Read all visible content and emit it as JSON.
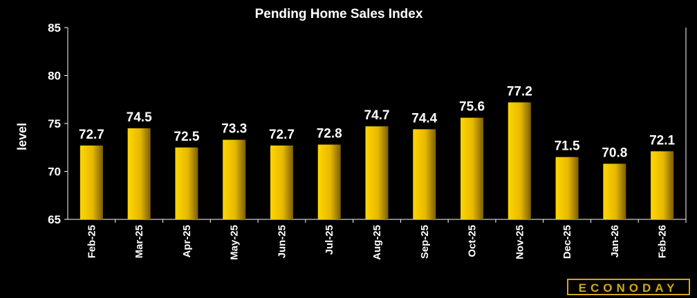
{
  "chart_data": {
    "type": "bar",
    "title": "Pending Home Sales Index",
    "ylabel": "level",
    "xlabel": "",
    "categories": [
      "Feb-25",
      "Mar-25",
      "Apr-25",
      "May-25",
      "Jun-25",
      "Jul-25",
      "Aug-25",
      "Sep-25",
      "Oct-25",
      "Nov-25",
      "Dec-25",
      "Jan-26",
      "Feb-26"
    ],
    "values": [
      72.7,
      74.5,
      72.5,
      73.3,
      72.7,
      72.8,
      74.7,
      74.4,
      75.6,
      77.2,
      71.5,
      70.8,
      72.1
    ],
    "value_labels": [
      "72.7",
      "74.5",
      "72.5",
      "73.3",
      "72.7",
      "72.8",
      "74.7",
      "74.4",
      "75.6",
      "77.2",
      "71.5",
      "70.8",
      "72.1"
    ],
    "ylim": [
      65,
      85
    ],
    "yticks": [
      65,
      70,
      75,
      80,
      85
    ],
    "grid": false,
    "bar_color_light": "#ffd700",
    "bar_color_dark": "#7a5f00",
    "axis_color": "#ffffff"
  },
  "brand": {
    "logo_text": "ECONODAY",
    "color": "#d4a817"
  }
}
